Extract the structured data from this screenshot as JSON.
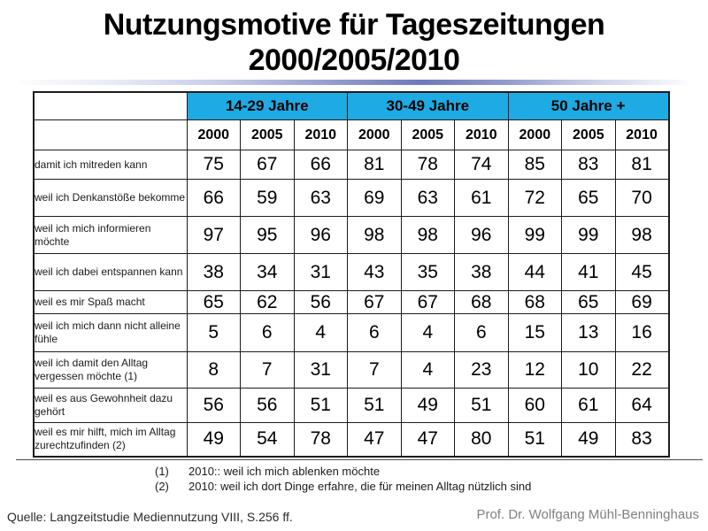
{
  "slide": {
    "title_line1": "Nutzungsmotive für Tageszeitungen",
    "title_line2": "2000/2005/2010"
  },
  "table": {
    "age_groups": [
      "14-29 Jahre",
      "30-49 Jahre",
      "50 Jahre +"
    ],
    "year_headers": [
      "2000",
      "2005",
      "2010",
      "2000",
      "2005",
      "2010",
      "2000",
      "2005",
      "2010"
    ],
    "rows": [
      {
        "label": "damit ich mitreden kann",
        "values": [
          "75",
          "67",
          "66",
          "81",
          "78",
          "74",
          "85",
          "83",
          "81"
        ]
      },
      {
        "label": "weil ich Denkanstöße bekomme",
        "values": [
          "66",
          "59",
          "63",
          "69",
          "63",
          "61",
          "72",
          "65",
          "70"
        ]
      },
      {
        "label": "weil ich mich informieren möchte",
        "values": [
          "97",
          "95",
          "96",
          "98",
          "98",
          "96",
          "99",
          "99",
          "98"
        ]
      },
      {
        "label": "weil ich dabei entspannen kann",
        "values": [
          "38",
          "34",
          "31",
          "43",
          "35",
          "38",
          "44",
          "41",
          "45"
        ]
      },
      {
        "label": "weil es mir Spaß macht",
        "values": [
          "65",
          "62",
          "56",
          "67",
          "67",
          "68",
          "68",
          "65",
          "69"
        ]
      },
      {
        "label": "weil ich mich dann nicht alleine fühle",
        "values": [
          "5",
          "6",
          "4",
          "6",
          "4",
          "6",
          "15",
          "13",
          "16"
        ]
      },
      {
        "label": "weil ich damit den Alltag vergessen möchte (1)",
        "values": [
          "8",
          "7",
          "31",
          "7",
          "4",
          "23",
          "12",
          "10",
          "22"
        ]
      },
      {
        "label": "weil es aus Gewohnheit dazu gehört",
        "values": [
          "56",
          "56",
          "51",
          "51",
          "49",
          "51",
          "60",
          "61",
          "64"
        ]
      },
      {
        "label": "weil es mir hilft, mich im Alltag zurechtzufinden (2)",
        "values": [
          "49",
          "54",
          "78",
          "47",
          "47",
          "80",
          "51",
          "49",
          "83"
        ]
      }
    ]
  },
  "footnotes": [
    {
      "marker": "(1)",
      "text": "2010:: weil ich mich ablenken möchte"
    },
    {
      "marker": "(2)",
      "text": "2010: weil ich dort Dinge erfahre,  die für meinen Alltag nützlich sind"
    }
  ],
  "footer": {
    "source": "Quelle: Langzeitstudie Mediennutzung  VIII, S.256 ff.",
    "author": "Prof. Dr. Wolfgang Mühl-Benninghaus"
  },
  "colors": {
    "header_blue": "#1EAAE2",
    "divider_gradient_mid": "#6F79BC",
    "border_dark": "#1C1C1C",
    "author_gray": "#808080"
  }
}
